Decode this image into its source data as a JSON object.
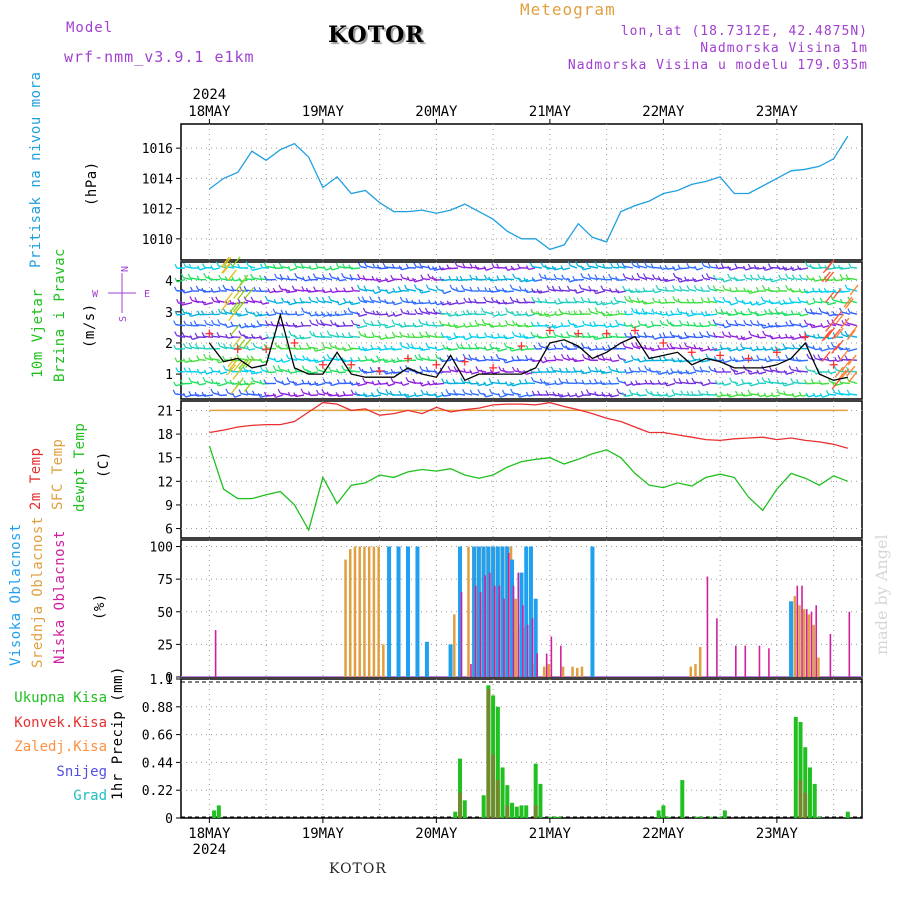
{
  "header": {
    "model_label": "Model",
    "model_name": "wrf-nmm_v3.9.1 e1km",
    "station": "KOTOR",
    "meteogram_label": "Meteogram",
    "lonlat": "lon,lat (18.7312E, 42.4875N)",
    "altitude": "Nadmorska Visina 1m",
    "model_altitude": "Nadmorska Visina u modelu 179.035m",
    "year": "2024",
    "footer_station": "KOTOR",
    "watermark": "made by Angel"
  },
  "colors": {
    "pressure": "#1fa0e0",
    "temp2m": "#e83030",
    "sfc": "#e0a040",
    "dewpt": "#20c020",
    "high": "#20a0f0",
    "mid": "#e0a040",
    "low": "#d020a0",
    "total_precip": "#20c020",
    "conv_precip": "#e83030",
    "frz_precip": "#ff9040",
    "snow": "#5050e0",
    "hail": "#20c0c0",
    "wind_label": "#20c020",
    "cardinal": "#a040d0"
  },
  "chart_data": [
    {
      "type": "line",
      "panel": "pressure",
      "ylabel": [
        "Pritisak na nivou mora",
        "(hPa)"
      ],
      "ylim": [
        1008.6,
        1017.6
      ],
      "yticks": [
        1010,
        1012,
        1014,
        1016
      ],
      "x_dates": [
        "18MAY",
        "19MAY",
        "20MAY",
        "21MAY",
        "22MAY",
        "23MAY"
      ],
      "x_hours": [
        0,
        3,
        6,
        9,
        12,
        15,
        18,
        21,
        24,
        27,
        30,
        33,
        36,
        39,
        42,
        45,
        48,
        51,
        54,
        57,
        60,
        63,
        66,
        69,
        72,
        75,
        78,
        81,
        84,
        87,
        90,
        93,
        96,
        99,
        102,
        105,
        108,
        111,
        114,
        117,
        120,
        123,
        126,
        129,
        132,
        135
      ],
      "series": [
        {
          "values": [
            1013.3,
            1014.0,
            1014.4,
            1015.8,
            1015.2,
            1015.9,
            1016.3,
            1015.4,
            1013.4,
            1014.1,
            1013.0,
            1013.2,
            1012.4,
            1011.8,
            1011.8,
            1011.9,
            1011.7,
            1011.9,
            1012.3,
            1011.8,
            1011.3,
            1010.5,
            1010.0,
            1010.0,
            1009.3,
            1009.6,
            1011.0,
            1010.1,
            1009.8,
            1011.8,
            1012.2,
            1012.5,
            1013.0,
            1013.2,
            1013.6,
            1013.8,
            1014.1,
            1013.0,
            1013.0,
            1013.5,
            1014.0,
            1014.5,
            1014.6,
            1014.8,
            1015.3,
            1016.8
          ]
        }
      ]
    },
    {
      "type": "barbs",
      "panel": "wind",
      "ylabel": [
        "10m Vjetar",
        "Brzina i Pravac",
        "(m/s)"
      ],
      "ylim": [
        0.2,
        4.6
      ],
      "yticks": [
        1,
        2,
        3,
        4
      ],
      "cardinal": {
        "n": "N",
        "s": "S",
        "e": "E",
        "w": "W"
      },
      "x_hours": [
        0,
        3,
        6,
        9,
        12,
        15,
        18,
        21,
        24,
        27,
        30,
        33,
        36,
        39,
        42,
        45,
        48,
        51,
        54,
        57,
        60,
        63,
        66,
        69,
        72,
        75,
        78,
        81,
        84,
        87,
        90,
        93,
        96,
        99,
        102,
        105,
        108,
        111,
        114,
        117,
        120,
        123,
        126,
        129,
        132,
        135
      ],
      "series": [
        {
          "name": "speed",
          "values": [
            2.0,
            1.4,
            1.5,
            1.2,
            1.3,
            2.9,
            1.2,
            1.0,
            1.0,
            1.7,
            1.0,
            0.9,
            0.9,
            0.9,
            1.2,
            1.0,
            0.9,
            1.6,
            0.8,
            1.0,
            1.0,
            1.0,
            1.0,
            1.2,
            2.0,
            2.1,
            1.9,
            1.5,
            1.7,
            2.0,
            2.2,
            1.5,
            1.6,
            1.7,
            1.3,
            1.5,
            1.4,
            1.2,
            1.2,
            1.2,
            1.3,
            1.5,
            2.0,
            1.0,
            0.8,
            0.9
          ]
        },
        {
          "name": "gust",
          "values": [
            2.3,
            2.1,
            1.8,
            1.7,
            1.8,
            3.2,
            2.0,
            1.2,
            1.3,
            1.9,
            1.3,
            1.5,
            1.1,
            1.3,
            1.5,
            1.5,
            1.3,
            1.8,
            1.4,
            1.5,
            1.2,
            1.8,
            1.9,
            1.6,
            2.4,
            2.6,
            2.3,
            2.1,
            2.3,
            2.6,
            2.4,
            2.0,
            2.0,
            2.0,
            1.7,
            1.8,
            1.6,
            1.4,
            1.5,
            1.6,
            1.7,
            1.9,
            2.2,
            1.3,
            1.3,
            1.3
          ]
        }
      ]
    },
    {
      "type": "line",
      "panel": "temperature",
      "ylabel": [
        "2m Temp",
        "SFC Temp",
        "dewpt Temp",
        "(C)"
      ],
      "ylim": [
        4.8,
        22.2
      ],
      "yticks": [
        6,
        9,
        12,
        15,
        18,
        21
      ],
      "x_hours": [
        0,
        3,
        6,
        9,
        12,
        15,
        18,
        21,
        24,
        27,
        30,
        33,
        36,
        39,
        42,
        45,
        48,
        51,
        54,
        57,
        60,
        63,
        66,
        69,
        72,
        75,
        78,
        81,
        84,
        87,
        90,
        93,
        96,
        99,
        102,
        105,
        108,
        111,
        114,
        117,
        120,
        123,
        126,
        129,
        132,
        135
      ],
      "series": [
        {
          "name": "2m Temp",
          "values": [
            18.2,
            18.5,
            18.9,
            19.1,
            19.2,
            19.2,
            19.6,
            20.8,
            22.0,
            21.8,
            21.0,
            21.2,
            20.4,
            20.6,
            21.0,
            20.6,
            21.4,
            20.8,
            21.1,
            21.3,
            21.7,
            21.8,
            21.8,
            21.7,
            22.0,
            21.5,
            21.1,
            20.6,
            20.0,
            19.6,
            18.9,
            18.2,
            18.2,
            17.9,
            17.6,
            17.3,
            17.2,
            17.4,
            17.5,
            17.6,
            17.3,
            17.5,
            17.2,
            17.0,
            16.7,
            16.2
          ]
        },
        {
          "name": "SFC Temp",
          "values": [
            21.0,
            21.0,
            21.0,
            21.0,
            21.0,
            21.0,
            21.0,
            21.0,
            21.0,
            21.0,
            21.0,
            21.0,
            21.0,
            21.0,
            21.0,
            21.0,
            21.0,
            21.0,
            21.0,
            21.0,
            21.0,
            21.0,
            21.0,
            21.0,
            21.0,
            21.0,
            21.0,
            21.0,
            21.0,
            21.0,
            21.0,
            21.0,
            21.0,
            21.0,
            21.0,
            21.0,
            21.0,
            21.0,
            21.0,
            21.0,
            21.0,
            21.0,
            21.0,
            21.0,
            21.0,
            21.0
          ]
        },
        {
          "name": "dewpt Temp",
          "values": [
            16.5,
            11.0,
            9.8,
            9.8,
            10.3,
            10.7,
            9.0,
            5.8,
            12.5,
            9.2,
            11.5,
            11.8,
            12.8,
            12.5,
            13.2,
            13.5,
            13.3,
            13.6,
            12.8,
            12.4,
            12.8,
            13.8,
            14.5,
            14.8,
            15.0,
            14.2,
            14.8,
            15.5,
            16.0,
            15.0,
            13.0,
            11.5,
            11.2,
            11.8,
            11.4,
            12.5,
            12.9,
            12.5,
            10.0,
            8.3,
            11.0,
            13.0,
            12.4,
            11.5,
            12.7,
            12.0
          ]
        }
      ]
    },
    {
      "type": "bar",
      "panel": "cloud",
      "ylabel": [
        "Visoka Oblacnost",
        "Srednja Oblacnost",
        "Niska Oblacnost",
        "(%)"
      ],
      "ylim": [
        0,
        105
      ],
      "yticks": [
        0,
        25,
        50,
        75,
        100
      ],
      "series": [
        {
          "name": "Visoka Oblacnost",
          "x": [
            38,
            40,
            42,
            44,
            46,
            51,
            53,
            56,
            57,
            58,
            59,
            60,
            61,
            62,
            63,
            64,
            66,
            67,
            68,
            69,
            81,
            123
          ],
          "values": [
            100,
            100,
            100,
            100,
            27,
            25,
            100,
            100,
            100,
            100,
            100,
            100,
            100,
            100,
            100,
            90,
            80,
            100,
            100,
            60,
            100,
            58
          ]
        },
        {
          "name": "Srednja Oblacnost",
          "x": [
            29,
            30,
            31,
            32,
            33,
            34,
            35,
            36,
            37,
            52,
            55,
            56,
            57,
            58,
            59,
            60,
            61,
            62,
            63,
            64,
            65,
            66,
            67,
            69,
            71,
            72,
            75,
            77,
            78,
            79,
            102,
            103,
            104,
            124,
            125,
            126,
            127,
            128,
            129
          ],
          "values": [
            90,
            98,
            100,
            100,
            100,
            100,
            100,
            100,
            25,
            48,
            100,
            100,
            100,
            100,
            100,
            100,
            100,
            100,
            100,
            100,
            60,
            40,
            38,
            10,
            8,
            10,
            8,
            8,
            7,
            8,
            8,
            10,
            23,
            62,
            55,
            52,
            48,
            40,
            15
          ]
        },
        {
          "name": "Niska Oblacnost",
          "x": [
            1,
            53,
            55,
            56,
            57,
            58,
            59,
            60,
            61,
            62,
            63,
            64,
            65,
            66,
            67,
            68,
            69,
            71,
            72,
            74,
            105,
            107,
            111,
            113,
            116,
            118,
            124,
            125,
            126,
            127,
            128,
            131,
            135
          ],
          "values": [
            36,
            65,
            10,
            70,
            65,
            78,
            80,
            70,
            70,
            60,
            95,
            70,
            80,
            55,
            40,
            45,
            18,
            18,
            31,
            24,
            77,
            45,
            24,
            24,
            24,
            22,
            70,
            70,
            52,
            50,
            55,
            33,
            50
          ]
        }
      ]
    },
    {
      "type": "bar",
      "panel": "precip",
      "ylabel": [
        "1hr Precip (mm)"
      ],
      "legend": [
        "Ukupna Kisa",
        "Konvek.Kisa",
        "Zaledj.Kisa",
        "Snijeg",
        "Grad"
      ],
      "ylim": [
        0,
        1.1
      ],
      "yticks": [
        0,
        0.22,
        0.44,
        0.66,
        0.88,
        1.1
      ],
      "series": [
        {
          "name": "Ukupna Kisa",
          "x": [
            1,
            2,
            52,
            53,
            54,
            58,
            59,
            60,
            61,
            62,
            63,
            64,
            65,
            66,
            67,
            69,
            70,
            72,
            73,
            74,
            95,
            96,
            97,
            100,
            103,
            104,
            106,
            108,
            109,
            124,
            125,
            126,
            127,
            128,
            129,
            135
          ],
          "values": [
            0.06,
            0.1,
            0.05,
            0.47,
            0.14,
            0.18,
            1.05,
            0.97,
            0.88,
            0.4,
            0.26,
            0.12,
            0.09,
            0.1,
            0.1,
            0.43,
            0.27,
            0.01,
            0.01,
            0.01,
            0.06,
            0.1,
            0.01,
            0.3,
            0.01,
            0.01,
            0.01,
            0.01,
            0.06,
            0.8,
            0.76,
            0.56,
            0.4,
            0.27,
            0.01,
            0.05
          ]
        },
        {
          "name": "Konvek.Kisa",
          "x": [
            53,
            59,
            60,
            61,
            63,
            69,
            125,
            126
          ],
          "values": [
            0.2,
            1.02,
            0.5,
            0.3,
            0.1,
            0.1,
            0.3,
            0.2
          ]
        }
      ]
    }
  ],
  "axis": {
    "day_labels": [
      "18MAY",
      "19MAY",
      "20MAY",
      "21MAY",
      "22MAY",
      "23MAY"
    ],
    "year_label_top": "2024",
    "year_label_bottom": "2024"
  }
}
